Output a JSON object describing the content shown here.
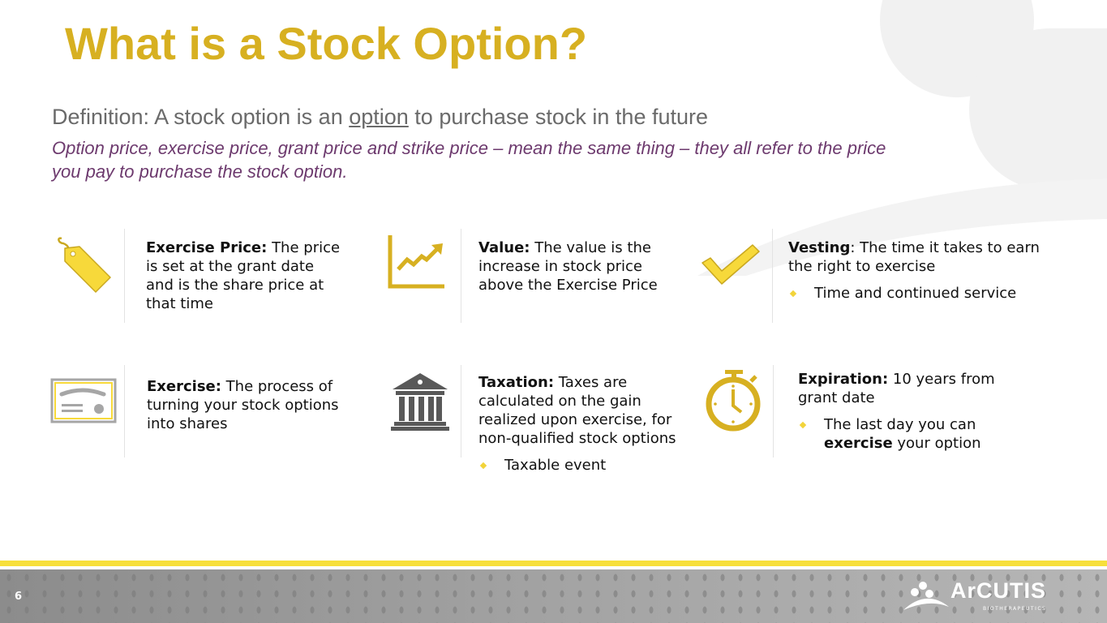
{
  "slide": {
    "title": "What is a Stock Option?",
    "definition_prefix": "Definition: A stock option is an ",
    "definition_emphasis": "option",
    "definition_suffix": " to purchase stock in the future",
    "note": "Option price, exercise price, grant price and strike price – mean the same thing – they all refer to the price you pay to purchase the stock option.",
    "page_number": "6"
  },
  "colors": {
    "title": "#d7b021",
    "note": "#6d3a6e",
    "accent_yellow": "#f7df3b",
    "footer_gray": "#9a9a9a"
  },
  "cards": [
    {
      "icon": "price-tag-icon",
      "term": "Exercise Price:",
      "text": " The price is set at the grant date and is the share price at that time"
    },
    {
      "icon": "trend-chart-icon",
      "term": "Value:",
      "text": " The value is the increase in stock price above the Exercise Price"
    },
    {
      "icon": "checkmark-icon",
      "term": "Vesting",
      "text": ": The time it takes to earn the right to exercise",
      "bullet": "Time and continued service"
    },
    {
      "icon": "certificate-icon",
      "term": "Exercise:",
      "text": " The process of turning your stock options into shares"
    },
    {
      "icon": "bank-building-icon",
      "term": "Taxation:",
      "text": " Taxes are calculated on the gain realized upon exercise, for non-qualified stock options",
      "bullet": "Taxable event"
    },
    {
      "icon": "stopwatch-icon",
      "term": "Expiration:",
      "text": " 10 years from grant date",
      "bullet_prefix": "The last day you can ",
      "bullet_bold": "exercise",
      "bullet_suffix": " your option"
    }
  ],
  "logo": {
    "name": "ArCUTIS",
    "sub": "BIOTHERAPEUTICS"
  }
}
